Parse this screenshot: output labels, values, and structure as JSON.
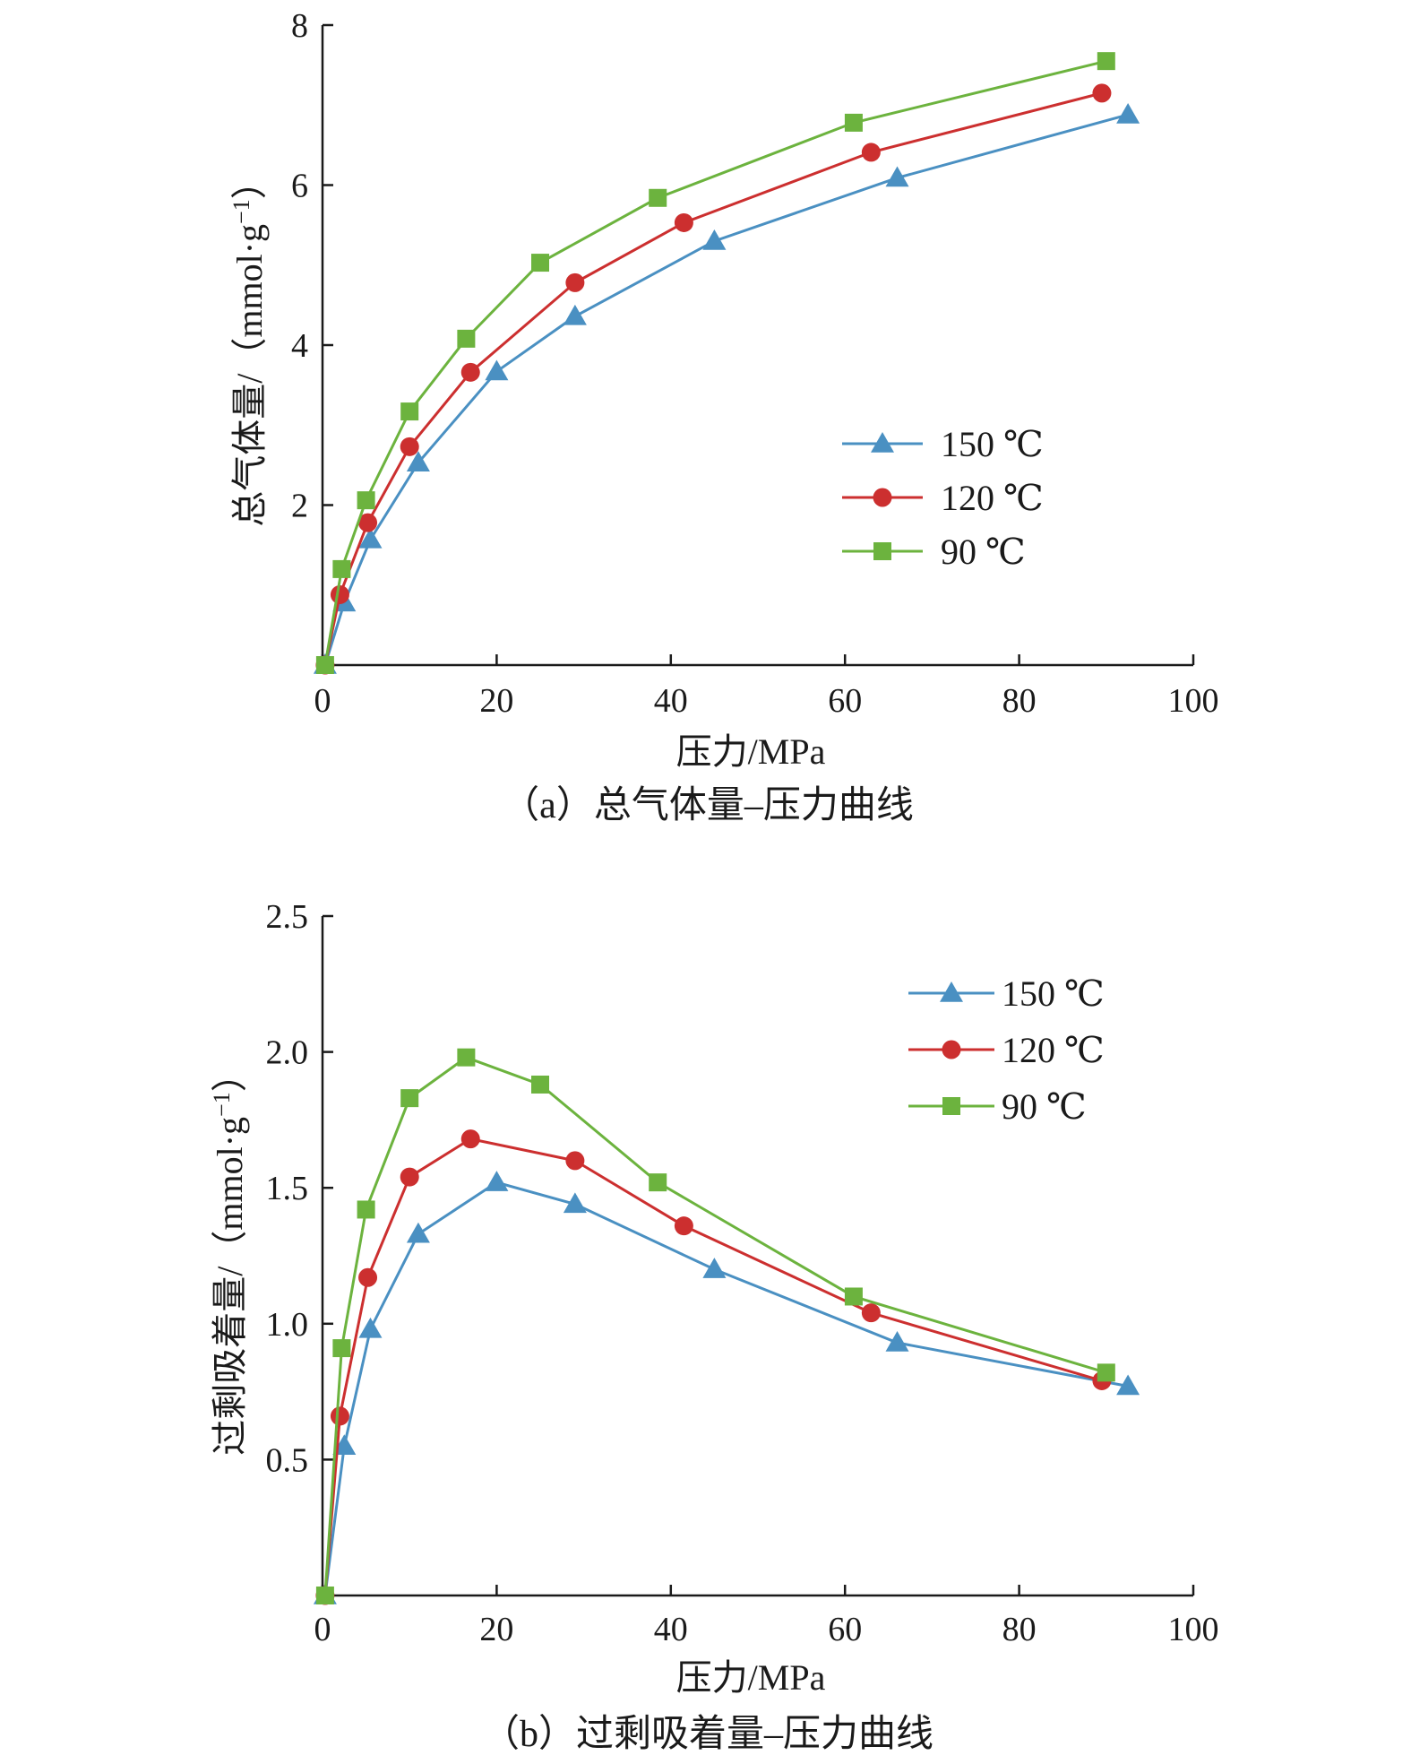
{
  "chart_data": [
    {
      "type": "line",
      "caption": "（a）总气体量–压力曲线",
      "xlabel": "压力/MPa",
      "ylabel": "总气体量/（mmol·g",
      "ylabel_sup": "−1",
      "ylabel_close": "）",
      "xlim": [
        0,
        100
      ],
      "ylim": [
        0,
        8
      ],
      "xticks": [
        0,
        20,
        40,
        60,
        80,
        100
      ],
      "xtick_labels": [
        "0",
        "20",
        "40",
        "60",
        "80",
        "100"
      ],
      "yticks": [
        2,
        4,
        6,
        8
      ],
      "ytick_labels": [
        "2",
        "4",
        "6",
        "8"
      ],
      "legend_position": "center-right",
      "series": [
        {
          "name": "150 ℃",
          "color": "#4a90c2",
          "marker": "triangle",
          "x": [
            0.3,
            2.5,
            5.5,
            11,
            20,
            29,
            45,
            66,
            92.5
          ],
          "y": [
            0.0,
            0.78,
            1.57,
            2.53,
            3.67,
            4.36,
            5.3,
            6.09,
            6.88
          ]
        },
        {
          "name": "120 ℃",
          "color": "#cc2f2f",
          "marker": "circle",
          "x": [
            0.3,
            2.0,
            5.2,
            10,
            17,
            29,
            41.5,
            63,
            89.5
          ],
          "y": [
            0.0,
            0.88,
            1.78,
            2.73,
            3.66,
            4.78,
            5.53,
            6.41,
            7.15
          ]
        },
        {
          "name": "90 ℃",
          "color": "#6cb33e",
          "marker": "square",
          "x": [
            0.3,
            2.2,
            5.0,
            10,
            16.5,
            25,
            38.5,
            61,
            90
          ],
          "y": [
            0.0,
            1.2,
            2.06,
            3.17,
            4.08,
            5.03,
            5.84,
            6.78,
            7.55
          ]
        }
      ]
    },
    {
      "type": "line",
      "caption": "（b）过剩吸着量–压力曲线",
      "xlabel": "压力/MPa",
      "ylabel": "过剩吸着量/（mmol·g",
      "ylabel_sup": "−1",
      "ylabel_close": "）",
      "xlim": [
        0,
        100
      ],
      "ylim": [
        0,
        2.5
      ],
      "xticks": [
        0,
        20,
        40,
        60,
        80,
        100
      ],
      "xtick_labels": [
        "0",
        "20",
        "40",
        "60",
        "80",
        "100"
      ],
      "yticks": [
        0.5,
        1.0,
        1.5,
        2.0,
        2.5
      ],
      "ytick_labels": [
        "0.5",
        "1.0",
        "1.5",
        "2.0",
        "2.5"
      ],
      "legend_position": "top-right",
      "series": [
        {
          "name": "150 ℃",
          "color": "#4a90c2",
          "marker": "triangle",
          "x": [
            0.3,
            2.5,
            5.5,
            11,
            20,
            29,
            45,
            66,
            92.5
          ],
          "y": [
            0.0,
            0.55,
            0.98,
            1.33,
            1.52,
            1.44,
            1.2,
            0.93,
            0.77
          ]
        },
        {
          "name": "120 ℃",
          "color": "#cc2f2f",
          "marker": "circle",
          "x": [
            0.3,
            2.0,
            5.2,
            10,
            17,
            29,
            41.5,
            63,
            89.5
          ],
          "y": [
            0.0,
            0.66,
            1.17,
            1.54,
            1.68,
            1.6,
            1.36,
            1.04,
            0.79
          ]
        },
        {
          "name": "90 ℃",
          "color": "#6cb33e",
          "marker": "square",
          "x": [
            0.3,
            2.2,
            5.0,
            10,
            16.5,
            25,
            38.5,
            61,
            90
          ],
          "y": [
            0.0,
            0.91,
            1.42,
            1.83,
            1.98,
            1.88,
            1.52,
            1.1,
            0.82
          ]
        }
      ]
    }
  ]
}
